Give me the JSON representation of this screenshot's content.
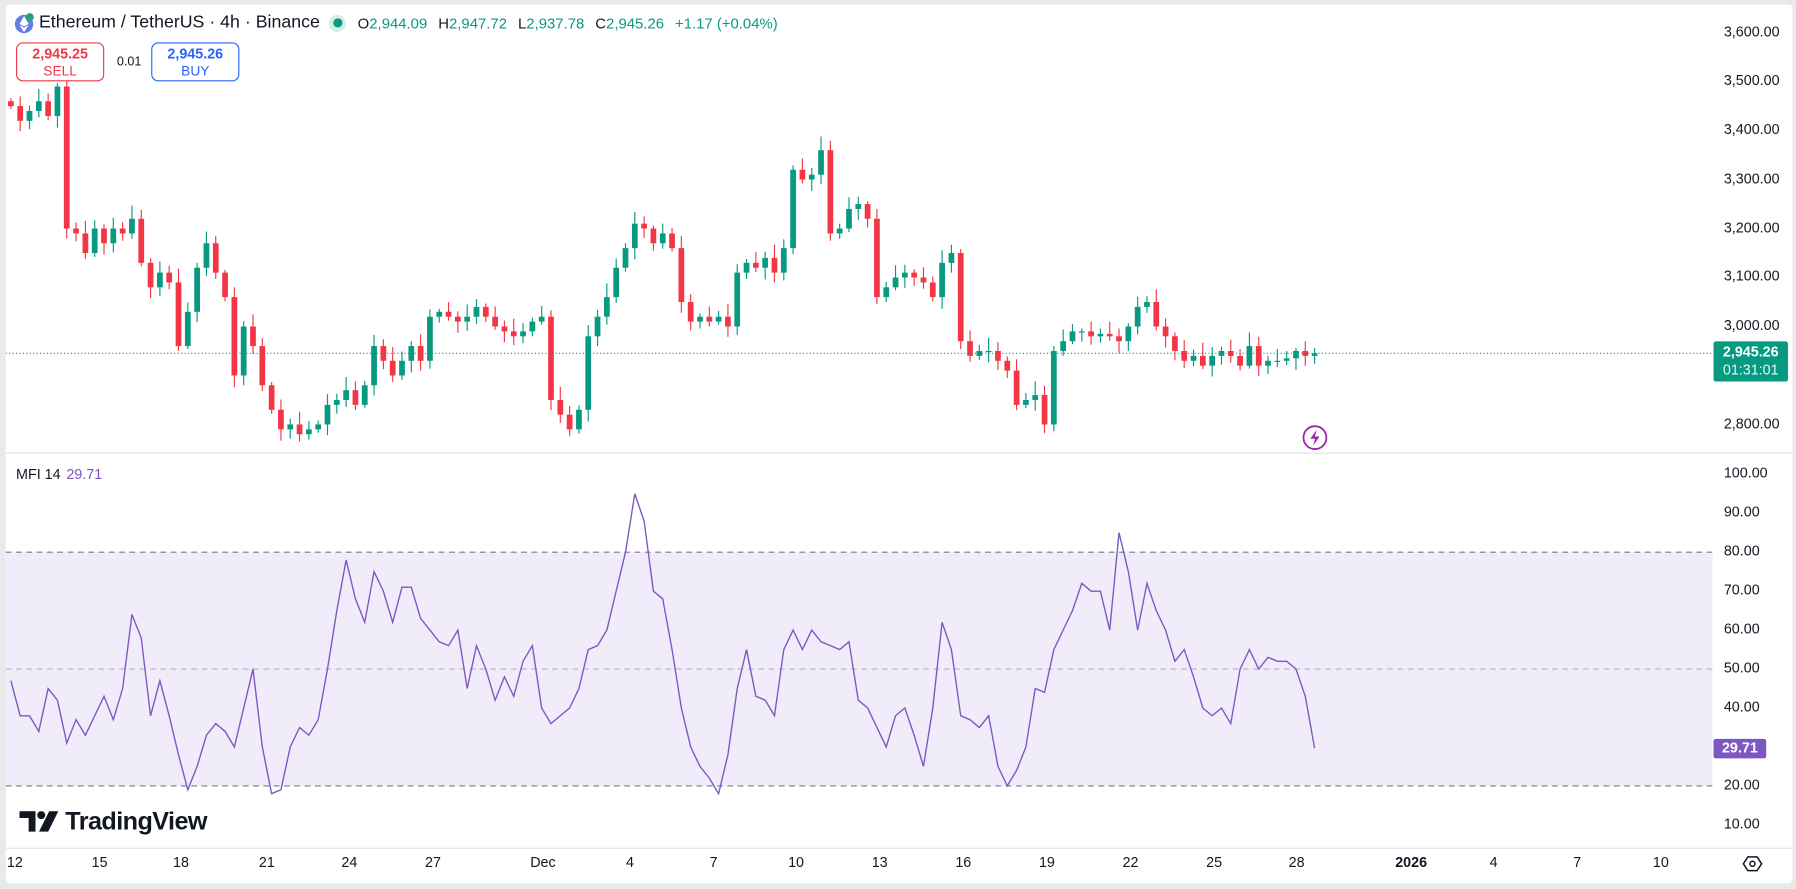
{
  "header": {
    "symbol": "Ethereum / TetherUS · 4h · Binance",
    "open_label": "O",
    "open": "2,944.09",
    "high_label": "H",
    "high": "2,947.72",
    "low_label": "L",
    "low": "2,937.78",
    "close_label": "C",
    "close": "2,945.26",
    "change": "+1.17 (+0.04%)"
  },
  "trade": {
    "sell_price": "2,945.25",
    "sell_label": "SELL",
    "spread": "0.01",
    "buy_price": "2,945.26",
    "buy_label": "BUY"
  },
  "price_axis": {
    "ticks": [
      "3,600.00",
      "3,500.00",
      "3,400.00",
      "3,300.00",
      "3,200.00",
      "3,100.00",
      "3,000.00",
      "2,800.00"
    ],
    "current_price": "2,945.26",
    "countdown": "01:31:01"
  },
  "mfi": {
    "label": "MFI 14",
    "value": "29.71",
    "ticks": [
      "100.00",
      "90.00",
      "80.00",
      "70.00",
      "60.00",
      "50.00",
      "40.00",
      "20.00",
      "10.00"
    ]
  },
  "time_axis": {
    "ticks": [
      "12",
      "15",
      "18",
      "21",
      "24",
      "27",
      "Dec",
      "4",
      "7",
      "10",
      "13",
      "16",
      "19",
      "22",
      "25",
      "28",
      "2026",
      "4",
      "7",
      "10"
    ]
  },
  "branding": {
    "logo": "TradingView"
  },
  "colors": {
    "up": "#089981",
    "down": "#f23645",
    "mfi": "#7e57c2",
    "band": "#f0ecf9"
  },
  "icons": {
    "settings": "settings-icon",
    "lightning": "lightning-icon",
    "symbol": "ethereum-logo-icon"
  },
  "chart_data": [
    {
      "type": "candlestick",
      "title": "Ethereum / TetherUS · 4h · Binance",
      "ylim": [
        2760,
        3640
      ],
      "closes": [
        3450,
        3420,
        3440,
        3460,
        3430,
        3490,
        3200,
        3190,
        3150,
        3200,
        3170,
        3200,
        3190,
        3220,
        3130,
        3080,
        3110,
        3090,
        2960,
        3030,
        3120,
        3170,
        3110,
        3060,
        2900,
        3000,
        2960,
        2880,
        2830,
        2790,
        2800,
        2780,
        2790,
        2800,
        2840,
        2850,
        2870,
        2840,
        2880,
        2960,
        2930,
        2900,
        2930,
        2960,
        2930,
        3020,
        3030,
        3020,
        3010,
        3020,
        3040,
        3020,
        3000,
        2990,
        2980,
        2990,
        3010,
        3020,
        2850,
        2820,
        2790,
        2830,
        2980,
        3020,
        3060,
        3120,
        3160,
        3210,
        3200,
        3170,
        3190,
        3160,
        3050,
        3010,
        3020,
        3010,
        3020,
        3000,
        3110,
        3130,
        3120,
        3140,
        3110,
        3160,
        3320,
        3300,
        3310,
        3360,
        3190,
        3200,
        3240,
        3250,
        3220,
        3060,
        3080,
        3100,
        3110,
        3100,
        3090,
        3060,
        3130,
        3150,
        2970,
        2940,
        2950,
        2950,
        2930,
        2910,
        2840,
        2850,
        2860,
        2800,
        2950,
        2970,
        2990,
        2990,
        2980,
        2985,
        2980,
        2970,
        3000,
        3040,
        3050,
        3000,
        2980,
        2950,
        2930,
        2940,
        2920,
        2940,
        2950,
        2940,
        2920,
        2960,
        2920,
        2930,
        2930,
        2935,
        2950,
        2940,
        2945.26
      ]
    },
    {
      "type": "line",
      "series": [
        {
          "name": "MFI 14",
          "values": [
            47,
            38,
            38,
            34,
            45,
            42,
            31,
            37,
            33,
            38,
            43,
            37,
            45,
            64,
            58,
            38,
            47,
            38,
            28,
            19,
            25,
            33,
            36,
            34,
            30,
            40,
            50,
            30,
            18,
            19,
            30,
            35,
            33,
            37,
            50,
            65,
            78,
            68,
            62,
            75,
            70,
            62,
            71,
            71,
            63,
            60,
            57,
            56,
            60,
            45,
            56,
            50,
            42,
            48,
            43,
            52,
            56,
            40,
            36,
            38,
            40,
            45,
            55,
            56,
            60,
            70,
            80,
            95,
            88,
            70,
            68,
            55,
            40,
            30,
            25,
            22,
            18,
            28,
            45,
            55,
            43,
            42,
            38,
            55,
            60,
            55,
            60,
            57,
            56,
            55,
            57,
            42,
            40,
            35,
            30,
            38,
            40,
            33,
            25,
            40,
            62,
            55,
            38,
            37,
            35,
            38,
            25,
            20,
            24,
            30,
            45,
            44,
            55,
            60,
            65,
            72,
            70,
            70,
            60,
            85,
            75,
            60,
            72,
            65,
            60,
            52,
            55,
            48,
            40,
            38,
            40,
            36,
            50,
            55,
            50,
            53,
            52,
            52,
            50,
            43,
            29.71
          ]
        }
      ],
      "ylim": [
        5,
        105
      ],
      "bands": [
        20,
        50,
        80
      ]
    }
  ]
}
